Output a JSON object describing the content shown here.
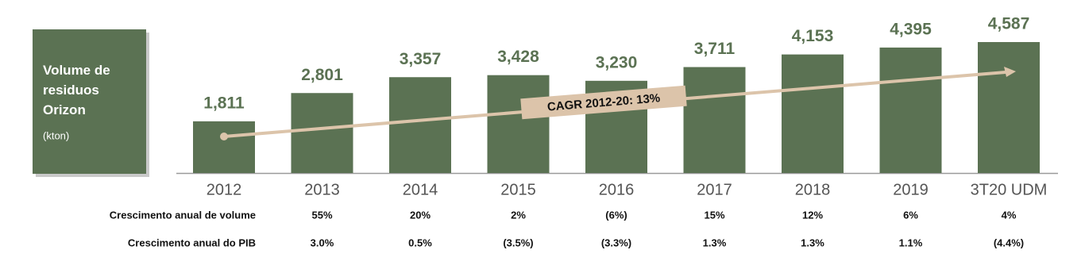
{
  "chart_data": {
    "type": "bar",
    "title": "Volume de residuos Orizon",
    "subtitle": "(kton)",
    "annotation": "CAGR 2012-20: 13%",
    "categories": [
      "2012",
      "2013",
      "2014",
      "2015",
      "2016",
      "2017",
      "2018",
      "2019",
      "3T20 UDM"
    ],
    "values": [
      1811,
      2801,
      3357,
      3428,
      3230,
      3711,
      4153,
      4395,
      4587
    ],
    "value_labels": [
      "1,811",
      "2,801",
      "3,357",
      "3,428",
      "3,230",
      "3,711",
      "4,153",
      "4,395",
      "4,587"
    ],
    "color": "#5b7253",
    "rows": [
      {
        "label": "Crescimento anual de volume",
        "values": [
          null,
          55,
          20,
          2,
          -6,
          15,
          12,
          6,
          4
        ],
        "value_labels": [
          null,
          "55%",
          "20%",
          "2%",
          "(6%)",
          "15%",
          "12%",
          "6%",
          "4%"
        ]
      },
      {
        "label": "Crescimento anual do PIB",
        "values": [
          null,
          3.0,
          0.5,
          -3.5,
          -3.3,
          1.3,
          1.3,
          1.1,
          -4.4
        ],
        "value_labels": [
          null,
          "3.0%",
          "0.5%",
          "(3.5%)",
          "(3.3%)",
          "1.3%",
          "1.3%",
          "1.1%",
          "(4.4%)"
        ]
      }
    ]
  }
}
